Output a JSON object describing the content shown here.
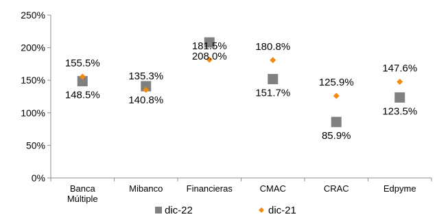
{
  "chart_data": {
    "type": "scatter",
    "title": "",
    "xlabel": "",
    "ylabel": "",
    "categories": [
      "Banca Múltiple",
      "Mibanco",
      "Financieras",
      "CMAC",
      "CRAC",
      "Edpyme"
    ],
    "category_lines": [
      [
        "Banca",
        "Múltiple"
      ],
      [
        "Mibanco"
      ],
      [
        "Financieras"
      ],
      [
        "CMAC"
      ],
      [
        "CRAC"
      ],
      [
        "Edpyme"
      ]
    ],
    "ylim": [
      0,
      250
    ],
    "y_ticks": [
      0,
      50,
      100,
      150,
      200,
      250
    ],
    "y_tick_labels": [
      "0%",
      "50%",
      "100%",
      "150%",
      "200%",
      "250%"
    ],
    "grid": false,
    "legend_position": "bottom",
    "series": [
      {
        "name": "dic-22",
        "marker": "square",
        "color": "#808080",
        "values": [
          148.5,
          140.8,
          208.0,
          151.7,
          85.9,
          123.5
        ],
        "labels": [
          "148.5%",
          "140.8%",
          "208.0%",
          "151.7%",
          "85.9%",
          "123.5%"
        ]
      },
      {
        "name": "dic-21",
        "marker": "diamond",
        "color": "#F28A10",
        "values": [
          155.5,
          135.3,
          181.5,
          180.8,
          125.9,
          147.6
        ],
        "labels": [
          "155.5%",
          "135.3%",
          "181.5%",
          "180.8%",
          "125.9%",
          "147.6%"
        ]
      }
    ]
  }
}
